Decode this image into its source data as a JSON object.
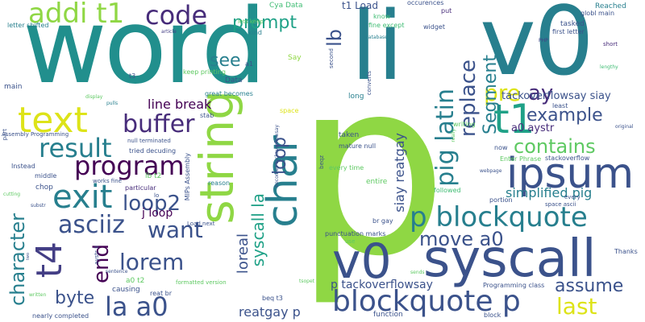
{
  "colors": {
    "teal": "#218f8d",
    "teal_dark": "#277f8e",
    "navy": "#3b528b",
    "purple": "#472c7a",
    "dark": "#440154",
    "indigo": "#433e85",
    "lime": "#8fd744",
    "yellow": "#dde318",
    "green": "#3fbc73",
    "green_light": "#5ec962",
    "sea": "#1fa187"
  },
  "words": [
    {
      "text": "word"
    },
    {
      "text": "li"
    },
    {
      "text": "v0"
    },
    {
      "text": "p"
    },
    {
      "text": "syscall"
    },
    {
      "text": "v0"
    },
    {
      "text": "string"
    },
    {
      "text": "char"
    },
    {
      "text": "t4"
    },
    {
      "text": "t1"
    },
    {
      "text": "ipsum"
    },
    {
      "text": "p blockquote"
    },
    {
      "text": "blockquote p"
    },
    {
      "text": "text"
    },
    {
      "text": "exit"
    },
    {
      "text": "buffer"
    },
    {
      "text": "code"
    },
    {
      "text": "addi t1"
    },
    {
      "text": "result"
    },
    {
      "text": "program"
    },
    {
      "text": "asciiz"
    },
    {
      "text": "loop2"
    },
    {
      "text": "la a0"
    },
    {
      "text": "prompt"
    },
    {
      "text": "pig latin"
    },
    {
      "text": "replace"
    },
    {
      "text": "pre"
    },
    {
      "text": "ay"
    },
    {
      "text": "Segment"
    },
    {
      "text": "example"
    },
    {
      "text": "contains"
    },
    {
      "text": "lb"
    },
    {
      "text": "syscall la"
    },
    {
      "text": "loop"
    },
    {
      "text": "see"
    },
    {
      "text": "move a0"
    },
    {
      "text": "lorem"
    },
    {
      "text": "want"
    },
    {
      "text": "end"
    },
    {
      "text": "character"
    },
    {
      "text": "byte"
    },
    {
      "text": "last"
    },
    {
      "text": "assume"
    },
    {
      "text": "loreal"
    },
    {
      "text": "line break"
    },
    {
      "text": "simplified pig"
    },
    {
      "text": "siay reatgay"
    },
    {
      "text": "tackoverflowsay siay"
    },
    {
      "text": "reatgay p"
    },
    {
      "text": "a0 aystr"
    },
    {
      "text": "t1 Load"
    },
    {
      "text": "j loop"
    },
    {
      "text": "p tackoverflowsay"
    },
    {
      "text": "Cya Data"
    },
    {
      "text": "Reached"
    },
    {
      "text": "globl main"
    },
    {
      "text": "tasked"
    },
    {
      "text": "first letter"
    },
    {
      "text": "short"
    },
    {
      "text": "lengthy"
    },
    {
      "text": "PHP"
    },
    {
      "text": "occurences"
    },
    {
      "text": "put"
    },
    {
      "text": "widget"
    },
    {
      "text": "know"
    },
    {
      "text": "fine except"
    },
    {
      "text": "database"
    },
    {
      "text": "lets keep"
    },
    {
      "text": "kind"
    },
    {
      "text": "Say"
    },
    {
      "text": "second"
    },
    {
      "text": "a1"
    },
    {
      "text": "keep printing"
    },
    {
      "text": "Data"
    },
    {
      "text": "great becomes"
    },
    {
      "text": "reason"
    },
    {
      "text": "space"
    },
    {
      "text": "letter shifted"
    },
    {
      "text": "main"
    },
    {
      "text": "article"
    },
    {
      "text": "display"
    },
    {
      "text": "pulls"
    },
    {
      "text": "t3"
    },
    {
      "text": "stab"
    },
    {
      "text": "Assembly Programming"
    },
    {
      "text": "null terminated"
    },
    {
      "text": "tried decuding"
    },
    {
      "text": "Instead"
    },
    {
      "text": "middle"
    },
    {
      "text": "chop"
    },
    {
      "text": "works fine"
    },
    {
      "text": "particular"
    },
    {
      "text": "lb t2"
    },
    {
      "text": "MIPs Assembly"
    },
    {
      "text": "Load next"
    },
    {
      "text": "becomes tackoverflowsay"
    },
    {
      "text": "long"
    },
    {
      "text": "converts"
    },
    {
      "text": "taken"
    },
    {
      "text": "mature null"
    },
    {
      "text": "beqz"
    },
    {
      "text": "every time"
    },
    {
      "text": "entire"
    },
    {
      "text": "followed"
    },
    {
      "text": "writing"
    },
    {
      "text": "now"
    },
    {
      "text": "Enter Phrase"
    },
    {
      "text": "stackoverflow"
    },
    {
      "text": "portion"
    },
    {
      "text": "every"
    },
    {
      "text": "space ascii"
    },
    {
      "text": "webpage"
    },
    {
      "text": "really"
    },
    {
      "text": "least"
    },
    {
      "text": "original"
    },
    {
      "text": "Thanks"
    },
    {
      "text": "punctuation marks"
    },
    {
      "text": "br gay"
    },
    {
      "text": "use"
    },
    {
      "text": "sends"
    },
    {
      "text": "tsopet"
    },
    {
      "text": "Programming class"
    },
    {
      "text": "function"
    },
    {
      "text": "block"
    },
    {
      "text": "beq t3"
    },
    {
      "text": "reat br"
    },
    {
      "text": "formatted version"
    },
    {
      "text": "a0 t2"
    },
    {
      "text": "causing"
    },
    {
      "text": "sentence"
    },
    {
      "text": "aystr li"
    },
    {
      "text": "nearly completed"
    },
    {
      "text": "written"
    },
    {
      "text": "two"
    },
    {
      "text": "cutting"
    },
    {
      "text": "substr"
    },
    {
      "text": "lo"
    },
    {
      "text": "part"
    }
  ]
}
